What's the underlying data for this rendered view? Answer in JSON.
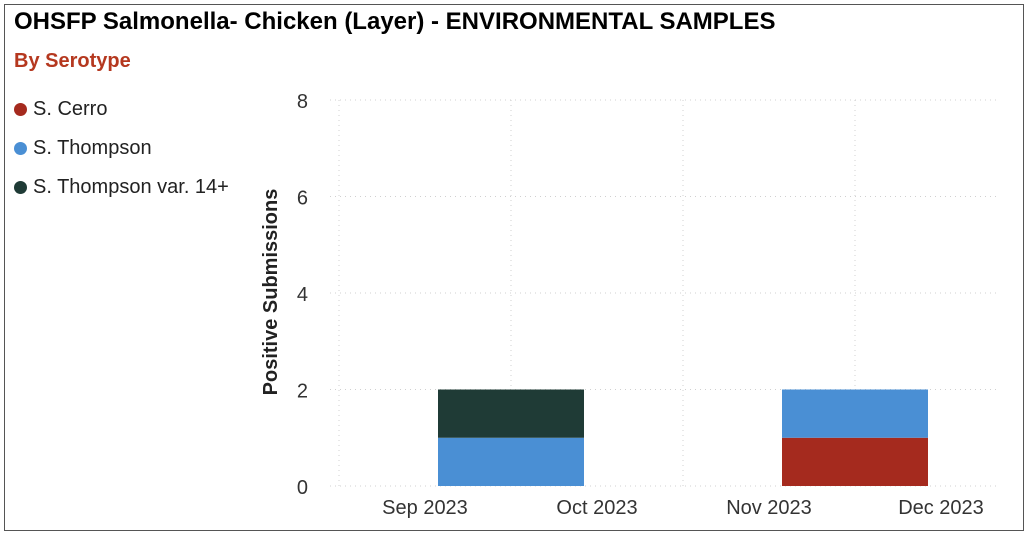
{
  "title": "OHSFP Salmonella- Chicken (Layer) - ENVIRONMENTAL SAMPLES",
  "subtitle": "By Serotype",
  "colors": {
    "subtitle": "#B5381F",
    "grid": "#D0D0D0",
    "axis_text": "#333333"
  },
  "legend": [
    {
      "label": "S. Cerro",
      "color": "#A52A1E"
    },
    {
      "label": "S. Thompson",
      "color": "#4A8FD4"
    },
    {
      "label": "S. Thompson var. 14+",
      "color": "#1F3B36"
    }
  ],
  "chart_data": {
    "type": "bar",
    "stacked": true,
    "categories": [
      "Sep 2023",
      "Oct 2023",
      "Nov 2023",
      "Dec 2023"
    ],
    "ylabel": "Positive Submissions",
    "ylim": [
      0,
      8
    ],
    "yticks": [
      0,
      2,
      4,
      6,
      8
    ],
    "grid": true,
    "legend_position": "left",
    "series": [
      {
        "name": "S. Cerro",
        "color": "#A52A1E",
        "values": [
          0,
          0,
          1,
          0
        ]
      },
      {
        "name": "S. Thompson",
        "color": "#4A8FD4",
        "values": [
          1,
          0,
          1,
          0
        ]
      },
      {
        "name": "S. Thompson var. 14+",
        "color": "#1F3B36",
        "values": [
          1,
          0,
          0,
          0
        ]
      }
    ]
  }
}
